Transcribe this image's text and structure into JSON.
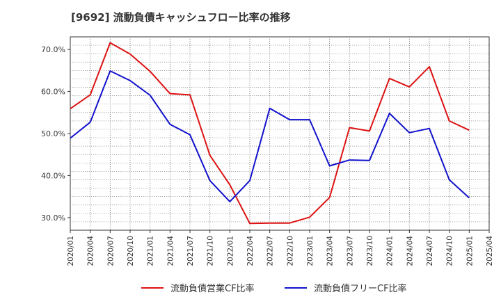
{
  "chart_data": {
    "type": "line",
    "title": "[9692]  流動負債キャッシュフロー比率の推移",
    "xlabel": "",
    "ylabel": "",
    "ylim": [
      27.0,
      73.0
    ],
    "yticks": [
      30,
      40,
      50,
      60,
      70
    ],
    "ytick_labels": [
      "30.0%",
      "40.0%",
      "50.0%",
      "60.0%",
      "70.0%"
    ],
    "grid": true,
    "legend_position": "bottom",
    "categories": [
      "2020/01",
      "2020/04",
      "2020/07",
      "2020/10",
      "2021/01",
      "2021/04",
      "2021/07",
      "2021/10",
      "2022/01",
      "2022/04",
      "2022/07",
      "2022/10",
      "2023/01",
      "2023/04",
      "2023/07",
      "2023/10",
      "2024/01",
      "2024/04",
      "2024/07",
      "2024/10",
      "2025/01",
      "2025/04"
    ],
    "series": [
      {
        "name": "流動負債営業CF比率",
        "color": "#dd1111",
        "values": [
          55.9,
          59.2,
          71.6,
          68.9,
          64.8,
          59.5,
          59.2,
          44.8,
          37.8,
          28.6,
          28.7,
          28.7,
          30.1,
          34.8,
          51.4,
          50.6,
          63.1,
          61.1,
          65.9,
          53.0,
          50.8,
          null
        ]
      },
      {
        "name": "流動負債フリーCF比率",
        "color": "#1111cc",
        "values": [
          48.9,
          52.7,
          64.9,
          62.6,
          59.1,
          52.2,
          49.7,
          38.8,
          33.8,
          38.8,
          56.0,
          53.3,
          53.3,
          42.3,
          43.7,
          43.6,
          54.8,
          50.2,
          51.2,
          39.0,
          34.7,
          null
        ]
      }
    ]
  }
}
